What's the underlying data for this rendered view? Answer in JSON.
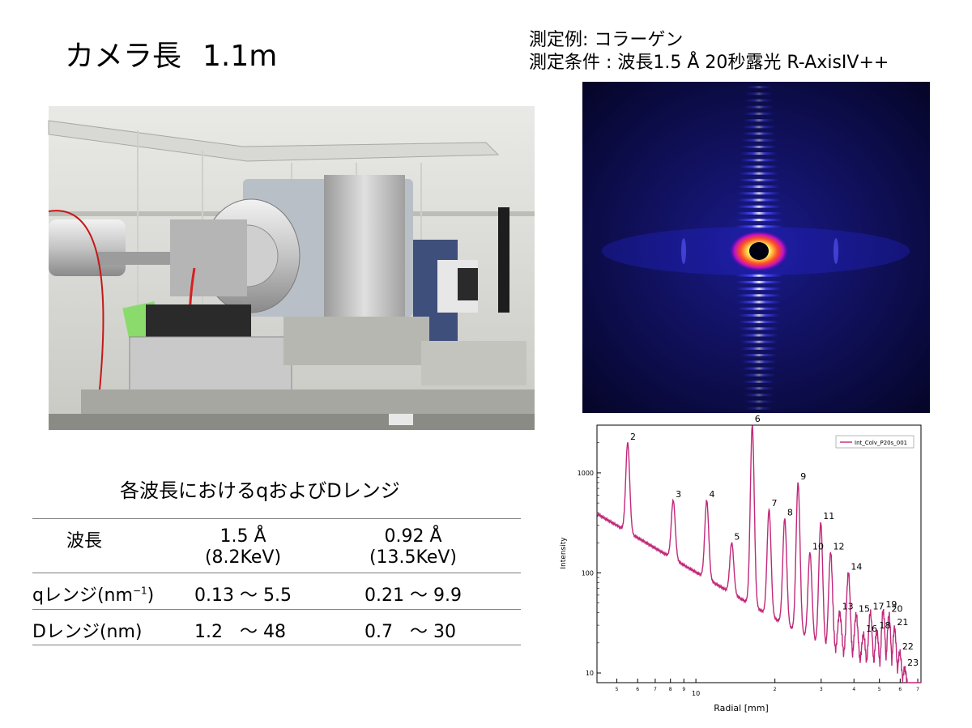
{
  "title": {
    "main": "カメラ長",
    "length": "1.1m"
  },
  "measurement": {
    "example": "測定例: コラーゲン",
    "conditions": "測定条件 : 波長1.5 Å  20秒露光 R-AxisIV++"
  },
  "table": {
    "title": "各波長におけるqおよびDレンジ",
    "header": {
      "label": "波長",
      "col1_wl": "1.5 Å",
      "col1_e": "(8.2KeV)",
      "col2_wl": "0.92 Å",
      "col2_e": "(13.5KeV)"
    },
    "rows": [
      {
        "label": "qレンジ(nm",
        "label_sup": "−1",
        "label_tail": ")",
        "v1": "0.13 〜 5.5",
        "v2": "0.21 〜 9.9"
      },
      {
        "label": "Dレンジ(nm)",
        "v1": "1.2   〜 48",
        "v2": "0.7   〜 30"
      }
    ]
  },
  "chart_data": {
    "type": "line",
    "xlabel": "Radial [mm]",
    "ylabel": "Intensity",
    "x_scale": "log",
    "y_scale": "log",
    "xlim": [
      4.2,
      72
    ],
    "ylim": [
      8,
      3000
    ],
    "legend": "Int_Colv_P20s_001",
    "legend_position": "top-right",
    "x_tick_labels": [
      "5",
      "6",
      "7",
      "8",
      "9",
      "10",
      "2",
      "3",
      "4",
      "5",
      "6",
      "7"
    ],
    "y_tick_labels": [
      "10",
      "100",
      "1000"
    ],
    "series": [
      {
        "name": "Int_Colv_P20s_001",
        "color": "#c0287a",
        "peaks": [
          {
            "label": "2",
            "x": 5.5,
            "y": 2000
          },
          {
            "label": "3",
            "x": 8.2,
            "y": 530
          },
          {
            "label": "4",
            "x": 11.0,
            "y": 530
          },
          {
            "label": "5",
            "x": 13.7,
            "y": 200
          },
          {
            "label": "6",
            "x": 16.4,
            "y": 3000
          },
          {
            "label": "7",
            "x": 19.0,
            "y": 430
          },
          {
            "label": "8",
            "x": 21.8,
            "y": 350
          },
          {
            "label": "9",
            "x": 24.5,
            "y": 800
          },
          {
            "label": "10",
            "x": 27.2,
            "y": 160
          },
          {
            "label": "11",
            "x": 29.9,
            "y": 320
          },
          {
            "label": "12",
            "x": 32.6,
            "y": 160
          },
          {
            "label": "13",
            "x": 35.3,
            "y": 40
          },
          {
            "label": "14",
            "x": 38.1,
            "y": 100
          },
          {
            "label": "15",
            "x": 40.8,
            "y": 38
          },
          {
            "label": "16",
            "x": 43.5,
            "y": 24
          },
          {
            "label": "17",
            "x": 46.2,
            "y": 40
          },
          {
            "label": "18",
            "x": 48.9,
            "y": 26
          },
          {
            "label": "19",
            "x": 51.7,
            "y": 42
          },
          {
            "label": "20",
            "x": 54.4,
            "y": 38
          },
          {
            "label": "21",
            "x": 57.1,
            "y": 28
          },
          {
            "label": "22",
            "x": 59.8,
            "y": 16
          },
          {
            "label": "23",
            "x": 62.5,
            "y": 11
          }
        ]
      }
    ]
  },
  "colors": {
    "detector_bg": "#0a0a3a",
    "detector_ring": "#3a3aff",
    "curve": "#c0287a",
    "rule": "#7f7f7f"
  }
}
